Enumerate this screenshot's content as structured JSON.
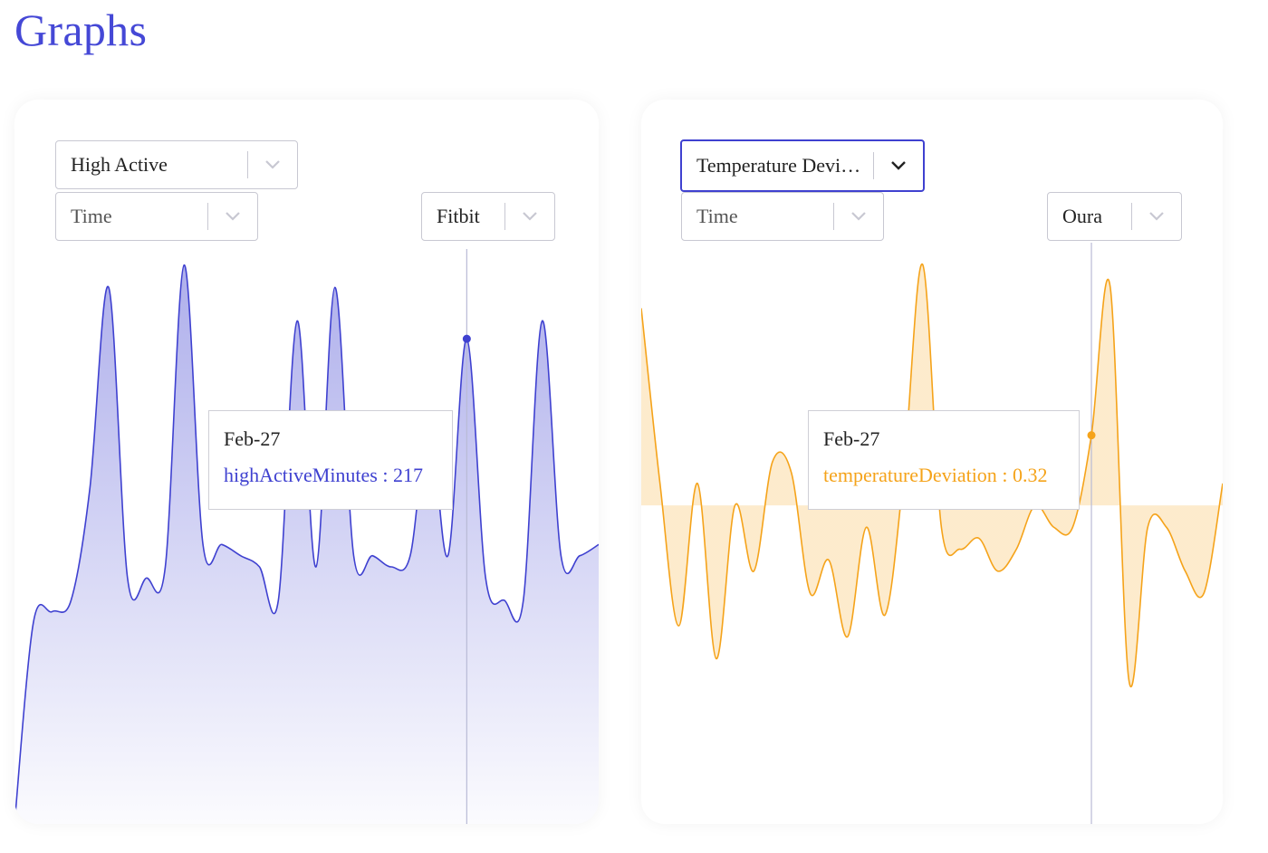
{
  "page": {
    "title": "Graphs"
  },
  "colors": {
    "blue": "#3f41d0",
    "orange": "#f5a31a"
  },
  "left_panel": {
    "metric_select": {
      "value": "High Active"
    },
    "axis_select": {
      "value": "Time"
    },
    "source_select": {
      "value": "Fitbit"
    },
    "tooltip": {
      "date": "Feb-27",
      "series": "highActiveMinutes",
      "value": "217",
      "separator": " : "
    }
  },
  "right_panel": {
    "metric_select": {
      "value": "Temperature Devi…"
    },
    "axis_select": {
      "value": "Time"
    },
    "source_select": {
      "value": "Oura"
    },
    "tooltip": {
      "date": "Feb-27",
      "series": "temperatureDeviation",
      "value": "0.32",
      "separator": " : "
    }
  },
  "chart_data": [
    {
      "type": "area",
      "series": [
        {
          "name": "highActiveMinutes",
          "color": "#3f41d0",
          "values": [
            0,
            90,
            95,
            100,
            150,
            240,
            110,
            110,
            115,
            250,
            125,
            125,
            120,
            115,
            100,
            225,
            115,
            240,
            120,
            120,
            115,
            120,
            180,
            120,
            217,
            110,
            100,
            100,
            225,
            120,
            120,
            125
          ]
        }
      ],
      "x_highlight_index": 24,
      "highlight_label": "Feb-27",
      "ylim": [
        0,
        260
      ]
    },
    {
      "type": "area",
      "series": [
        {
          "name": "temperatureDeviation",
          "color": "#f5a31a",
          "values": [
            0.9,
            0.1,
            -0.55,
            0.1,
            -0.7,
            0.0,
            -0.3,
            0.2,
            0.15,
            -0.4,
            -0.25,
            -0.6,
            -0.1,
            -0.5,
            0.15,
            1.1,
            -0.1,
            -0.2,
            -0.15,
            -0.3,
            -0.2,
            0.0,
            -0.1,
            -0.1,
            0.32,
            1.0,
            -0.8,
            -0.1,
            -0.1,
            -0.3,
            -0.4,
            0.1
          ]
        }
      ],
      "x_highlight_index": 24,
      "highlight_label": "Feb-27",
      "ylim": [
        -1.0,
        1.1
      ]
    }
  ]
}
